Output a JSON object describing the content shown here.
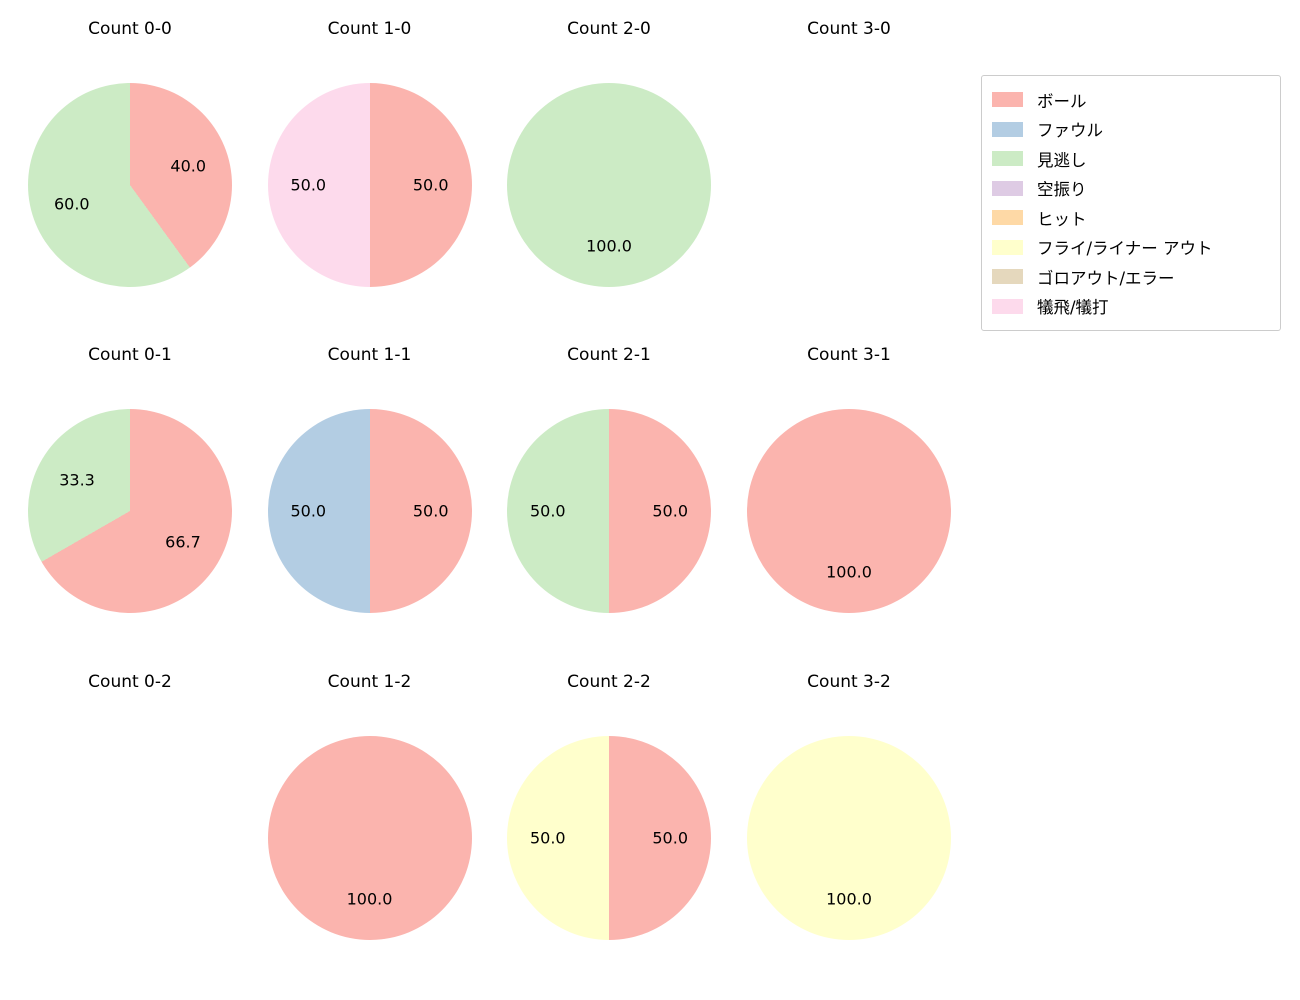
{
  "figure": {
    "background": "#ffffff",
    "text_color": "#000000"
  },
  "legend": {
    "position": "top-right",
    "items": [
      {
        "label": "ボール",
        "color": "#fbb4ae"
      },
      {
        "label": "ファウル",
        "color": "#b3cde3"
      },
      {
        "label": "見逃し",
        "color": "#ccebc5"
      },
      {
        "label": "空振り",
        "color": "#decbe4"
      },
      {
        "label": "ヒット",
        "color": "#fed9a6"
      },
      {
        "label": "フライ/ライナー アウト",
        "color": "#ffffcc"
      },
      {
        "label": "ゴロアウト/エラー",
        "color": "#e5d8bd"
      },
      {
        "label": "犠飛/犠打",
        "color": "#fddaec"
      }
    ]
  },
  "chart_data": [
    {
      "type": "pie",
      "title": "Count 0-0",
      "start_angle": "top",
      "direction": "clockwise",
      "slices": [
        {
          "legend": "ボール",
          "value": 40.0,
          "label": "40.0",
          "color": "#fbb4ae"
        },
        {
          "legend": "見逃し",
          "value": 60.0,
          "label": "60.0",
          "color": "#ccebc5"
        }
      ]
    },
    {
      "type": "pie",
      "title": "Count 1-0",
      "start_angle": "top",
      "direction": "clockwise",
      "slices": [
        {
          "legend": "ボール",
          "value": 50.0,
          "label": "50.0",
          "color": "#fbb4ae"
        },
        {
          "legend": "犠飛/犠打",
          "value": 50.0,
          "label": "50.0",
          "color": "#fddaec"
        }
      ]
    },
    {
      "type": "pie",
      "title": "Count 2-0",
      "start_angle": "top",
      "direction": "clockwise",
      "slices": [
        {
          "legend": "見逃し",
          "value": 100.0,
          "label": "100.0",
          "color": "#ccebc5"
        }
      ]
    },
    {
      "type": "pie",
      "title": "Count 3-0",
      "start_angle": "top",
      "direction": "clockwise",
      "slices": []
    },
    {
      "type": "pie",
      "title": "Count 0-1",
      "start_angle": "top",
      "direction": "clockwise",
      "slices": [
        {
          "legend": "ボール",
          "value": 66.7,
          "label": "66.7",
          "color": "#fbb4ae"
        },
        {
          "legend": "見逃し",
          "value": 33.3,
          "label": "33.3",
          "color": "#ccebc5"
        }
      ]
    },
    {
      "type": "pie",
      "title": "Count 1-1",
      "start_angle": "top",
      "direction": "clockwise",
      "slices": [
        {
          "legend": "ボール",
          "value": 50.0,
          "label": "50.0",
          "color": "#fbb4ae"
        },
        {
          "legend": "ファウル",
          "value": 50.0,
          "label": "50.0",
          "color": "#b3cde3"
        }
      ]
    },
    {
      "type": "pie",
      "title": "Count 2-1",
      "start_angle": "top",
      "direction": "clockwise",
      "slices": [
        {
          "legend": "ボール",
          "value": 50.0,
          "label": "50.0",
          "color": "#fbb4ae"
        },
        {
          "legend": "見逃し",
          "value": 50.0,
          "label": "50.0",
          "color": "#ccebc5"
        }
      ]
    },
    {
      "type": "pie",
      "title": "Count 3-1",
      "start_angle": "top",
      "direction": "clockwise",
      "slices": [
        {
          "legend": "ボール",
          "value": 100.0,
          "label": "100.0",
          "color": "#fbb4ae"
        }
      ]
    },
    {
      "type": "pie",
      "title": "Count 0-2",
      "start_angle": "top",
      "direction": "clockwise",
      "slices": []
    },
    {
      "type": "pie",
      "title": "Count 1-2",
      "start_angle": "top",
      "direction": "clockwise",
      "slices": [
        {
          "legend": "ボール",
          "value": 100.0,
          "label": "100.0",
          "color": "#fbb4ae"
        }
      ]
    },
    {
      "type": "pie",
      "title": "Count 2-2",
      "start_angle": "top",
      "direction": "clockwise",
      "slices": [
        {
          "legend": "ボール",
          "value": 50.0,
          "label": "50.0",
          "color": "#fbb4ae"
        },
        {
          "legend": "フライ/ライナー アウト",
          "value": 50.0,
          "label": "50.0",
          "color": "#ffffcc"
        }
      ]
    },
    {
      "type": "pie",
      "title": "Count 3-2",
      "start_angle": "top",
      "direction": "clockwise",
      "slices": [
        {
          "legend": "フライ/ライナー アウト",
          "value": 100.0,
          "label": "100.0",
          "color": "#ffffcc"
        }
      ]
    }
  ]
}
